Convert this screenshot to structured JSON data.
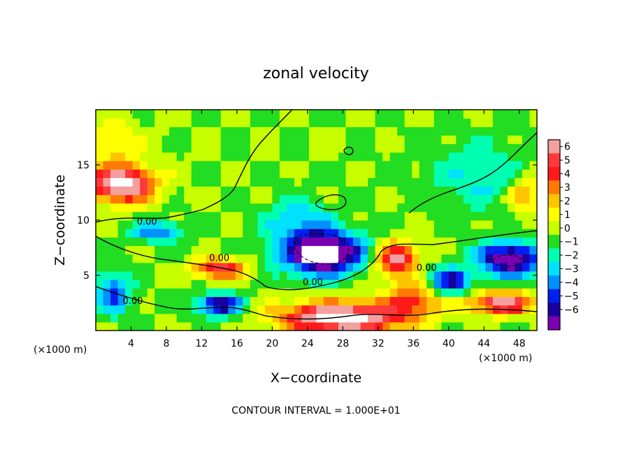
{
  "chart_data": {
    "type": "heatmap",
    "title": "zonal velocity",
    "xlabel": "X−coordinate",
    "ylabel": "Z−coordinate",
    "x_scale_note": "(×1000 m)",
    "y_scale_note": "(×1000 m)",
    "xlim": [
      0,
      50
    ],
    "ylim": [
      0,
      20
    ],
    "x_ticks": [
      4,
      8,
      12,
      16,
      20,
      24,
      28,
      32,
      36,
      40,
      44,
      48
    ],
    "y_ticks": [
      5,
      10,
      15
    ],
    "colorbar": {
      "ticks": [
        6,
        5,
        4,
        3,
        2,
        1,
        0,
        -1,
        -2,
        -3,
        -4,
        -5,
        -6
      ],
      "colors": [
        "#f4a0a0",
        "#ff3a3a",
        "#ff1a1a",
        "#ff7a00",
        "#ffc400",
        "#ffff00",
        "#c8ff00",
        "#22dd22",
        "#00ffb0",
        "#00e0ff",
        "#0090ff",
        "#0020f0",
        "#1800a0",
        "#7a00b0"
      ],
      "range": [
        -6,
        6
      ]
    },
    "contour_labels": [
      {
        "text": "0.00",
        "x": 5.8,
        "z": 9.6
      },
      {
        "text": "0.00",
        "x": 14.0,
        "z": 6.3
      },
      {
        "text": "0.00",
        "x": 24.6,
        "z": 4.1
      },
      {
        "text": "0.00",
        "x": 4.2,
        "z": 2.4
      },
      {
        "text": "0.00",
        "x": 37.5,
        "z": 5.4
      }
    ],
    "blobs": [
      {
        "x": 3.0,
        "z": 13.3,
        "v": 8.0,
        "sx": 3.5,
        "sz": 1.6
      },
      {
        "x": 25.8,
        "z": 7.0,
        "v": -8.5,
        "sx": 4.6,
        "sz": 1.9
      },
      {
        "x": 47.0,
        "z": 6.5,
        "v": -7.0,
        "sx": 3.6,
        "sz": 1.5
      },
      {
        "x": 28.0,
        "z": 1.2,
        "v": 8.0,
        "sx": 7.0,
        "sz": 1.4
      },
      {
        "x": 46.0,
        "z": 2.5,
        "v": 6.0,
        "sx": 4.0,
        "sz": 1.0
      },
      {
        "x": 14.0,
        "z": 2.4,
        "v": -6.0,
        "sx": 2.5,
        "sz": 1.0
      },
      {
        "x": 14.0,
        "z": 5.6,
        "v": 5.0,
        "sx": 3.0,
        "sz": 1.0
      },
      {
        "x": 7.0,
        "z": 9.0,
        "v": -3.5,
        "sx": 3.0,
        "sz": 1.0
      },
      {
        "x": 34.0,
        "z": 6.5,
        "v": 6.0,
        "sx": 2.5,
        "sz": 1.5
      },
      {
        "x": 40.0,
        "z": 4.5,
        "v": -5.0,
        "sx": 2.5,
        "sz": 1.2
      },
      {
        "x": 2.0,
        "z": 3.5,
        "v": -4.0,
        "sx": 2.0,
        "sz": 2.0
      },
      {
        "x": 23.0,
        "z": 10.0,
        "v": -2.5,
        "sx": 4.0,
        "sz": 2.0
      },
      {
        "x": 44.0,
        "z": 14.0,
        "v": -2.0,
        "sx": 6.0,
        "sz": 3.0
      },
      {
        "x": 48.5,
        "z": 12.5,
        "v": 3.0,
        "sx": 2.0,
        "sz": 2.0
      },
      {
        "x": 36.0,
        "z": 3.0,
        "v": 4.0,
        "sx": 3.0,
        "sz": 1.5
      },
      {
        "x": 2.0,
        "z": 17.0,
        "v": 2.0,
        "sx": 3.0,
        "sz": 2.0
      }
    ]
  },
  "footer": {
    "contour_interval_text": "CONTOUR INTERVAL = 1.000E+01"
  }
}
